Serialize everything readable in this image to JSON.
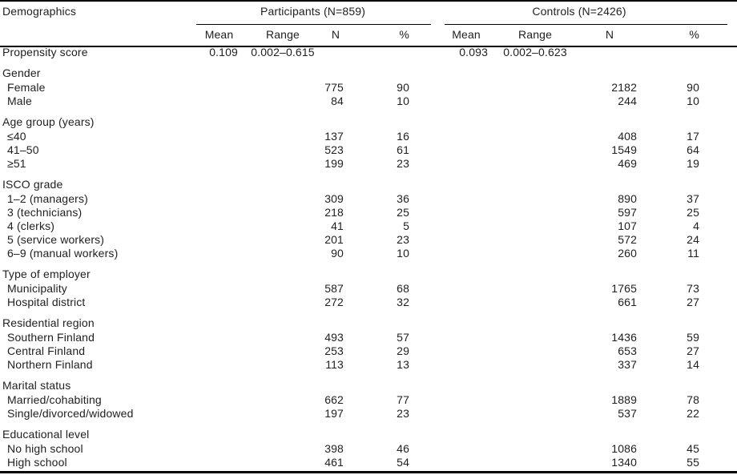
{
  "table": {
    "title_col": "Demographics",
    "groups": [
      {
        "label": "Participants (N=859)"
      },
      {
        "label": "Controls (N=2426)"
      }
    ],
    "sub_headers": [
      "Mean",
      "Range",
      "N",
      "%"
    ],
    "rows": [
      {
        "type": "data",
        "indent": 0,
        "label": "Propensity score",
        "cells": [
          "0.109",
          "0.002–0.615",
          "",
          "",
          "0.093",
          "0.002–0.623",
          "",
          ""
        ]
      },
      {
        "type": "section",
        "label": "Gender"
      },
      {
        "type": "data",
        "indent": 1,
        "label": "Female",
        "cells": [
          "",
          "",
          "775",
          "90",
          "",
          "",
          "2182",
          "90"
        ]
      },
      {
        "type": "data",
        "indent": 1,
        "label": "Male",
        "cells": [
          "",
          "",
          "84",
          "10",
          "",
          "",
          "244",
          "10"
        ]
      },
      {
        "type": "section",
        "label": "Age group (years)"
      },
      {
        "type": "data",
        "indent": 1,
        "label": "≤40",
        "cells": [
          "",
          "",
          "137",
          "16",
          "",
          "",
          "408",
          "17"
        ]
      },
      {
        "type": "data",
        "indent": 1,
        "label": "41–50",
        "cells": [
          "",
          "",
          "523",
          "61",
          "",
          "",
          "1549",
          "64"
        ]
      },
      {
        "type": "data",
        "indent": 1,
        "label": "≥51",
        "cells": [
          "",
          "",
          "199",
          "23",
          "",
          "",
          "469",
          "19"
        ]
      },
      {
        "type": "section",
        "label": "ISCO grade"
      },
      {
        "type": "data",
        "indent": 1,
        "label": "1–2 (managers)",
        "cells": [
          "",
          "",
          "309",
          "36",
          "",
          "",
          "890",
          "37"
        ]
      },
      {
        "type": "data",
        "indent": 1,
        "label": "3 (technicians)",
        "cells": [
          "",
          "",
          "218",
          "25",
          "",
          "",
          "597",
          "25"
        ]
      },
      {
        "type": "data",
        "indent": 1,
        "label": "4 (clerks)",
        "cells": [
          "",
          "",
          "41",
          "5",
          "",
          "",
          "107",
          "4"
        ]
      },
      {
        "type": "data",
        "indent": 1,
        "label": "5 (service workers)",
        "cells": [
          "",
          "",
          "201",
          "23",
          "",
          "",
          "572",
          "24"
        ]
      },
      {
        "type": "data",
        "indent": 1,
        "label": "6–9 (manual workers)",
        "cells": [
          "",
          "",
          "90",
          "10",
          "",
          "",
          "260",
          "11"
        ]
      },
      {
        "type": "section",
        "label": "Type of employer"
      },
      {
        "type": "data",
        "indent": 1,
        "label": "Municipality",
        "cells": [
          "",
          "",
          "587",
          "68",
          "",
          "",
          "1765",
          "73"
        ]
      },
      {
        "type": "data",
        "indent": 1,
        "label": "Hospital district",
        "cells": [
          "",
          "",
          "272",
          "32",
          "",
          "",
          "661",
          "27"
        ]
      },
      {
        "type": "section",
        "label": "Residential region"
      },
      {
        "type": "data",
        "indent": 1,
        "label": "Southern Finland",
        "cells": [
          "",
          "",
          "493",
          "57",
          "",
          "",
          "1436",
          "59"
        ]
      },
      {
        "type": "data",
        "indent": 1,
        "label": "Central Finland",
        "cells": [
          "",
          "",
          "253",
          "29",
          "",
          "",
          "653",
          "27"
        ]
      },
      {
        "type": "data",
        "indent": 1,
        "label": "Northern Finland",
        "cells": [
          "",
          "",
          "113",
          "13",
          "",
          "",
          "337",
          "14"
        ]
      },
      {
        "type": "section",
        "label": "Marital status"
      },
      {
        "type": "data",
        "indent": 1,
        "label": "Married/cohabiting",
        "cells": [
          "",
          "",
          "662",
          "77",
          "",
          "",
          "1889",
          "78"
        ]
      },
      {
        "type": "data",
        "indent": 1,
        "label": "Single/divorced/widowed",
        "cells": [
          "",
          "",
          "197",
          "23",
          "",
          "",
          "537",
          "22"
        ]
      },
      {
        "type": "section",
        "label": "Educational level"
      },
      {
        "type": "data",
        "indent": 1,
        "label": "No high school",
        "cells": [
          "",
          "",
          "398",
          "46",
          "",
          "",
          "1086",
          "45"
        ]
      },
      {
        "type": "data",
        "indent": 1,
        "label": "High school",
        "cells": [
          "",
          "",
          "461",
          "54",
          "",
          "",
          "1340",
          "55"
        ]
      }
    ]
  },
  "colors": {
    "text": "#212121",
    "rule": "#000000",
    "background": "#ffffff"
  }
}
